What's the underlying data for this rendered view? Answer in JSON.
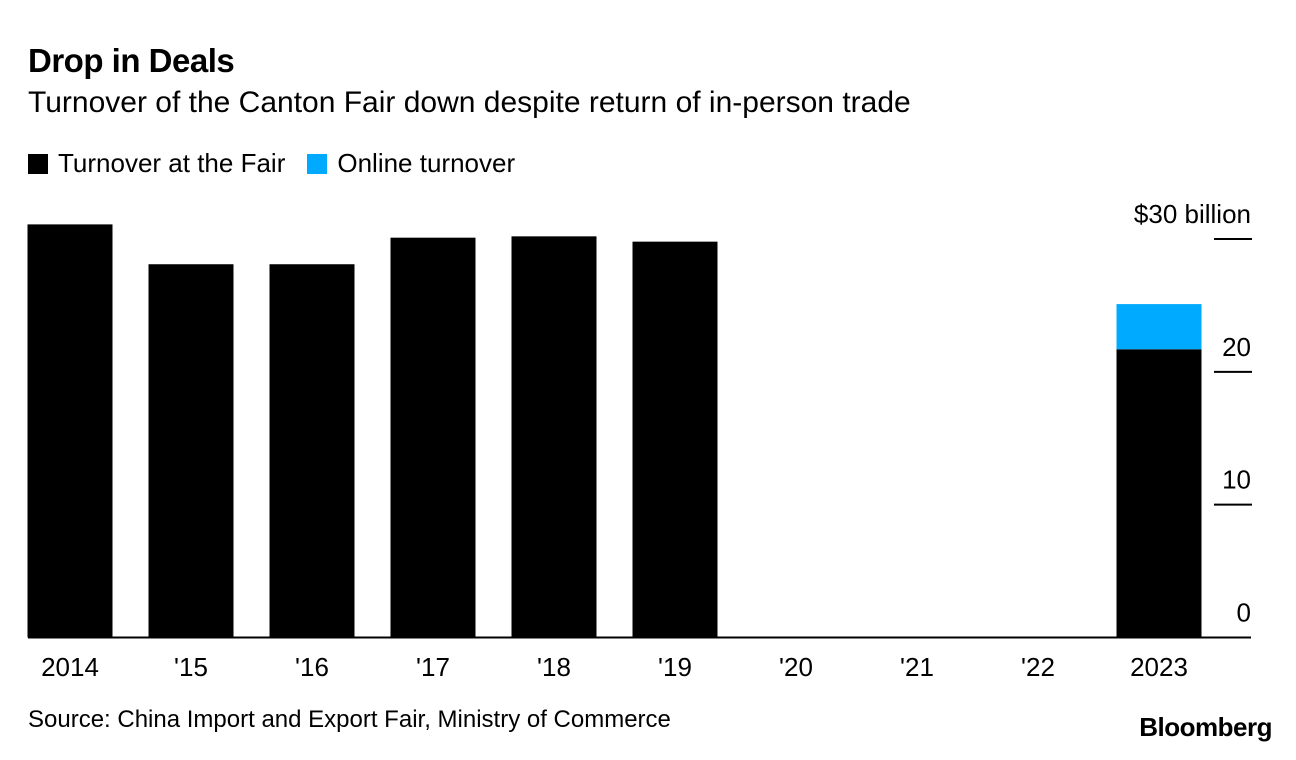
{
  "chart_data": {
    "type": "bar",
    "stacked": true,
    "title": "Drop in Deals",
    "subtitle": "Turnover of the Canton Fair down despite return of in-person trade",
    "categories": [
      "2014",
      "'15",
      "'16",
      "'17",
      "'18",
      "'19",
      "'20",
      "'21",
      "'22",
      "2023"
    ],
    "series": [
      {
        "name": "Turnover at the Fair",
        "color": "#000000",
        "values": [
          31.1,
          28.1,
          28.1,
          30.1,
          30.2,
          29.8,
          null,
          null,
          null,
          21.7
        ]
      },
      {
        "name": "Online turnover",
        "color": "#00aaff",
        "values": [
          null,
          null,
          null,
          null,
          null,
          null,
          null,
          null,
          null,
          3.4
        ]
      }
    ],
    "ylim": [
      0,
      30
    ],
    "yticks": [
      0,
      10,
      20,
      30
    ],
    "ytick_labels": [
      "0",
      "10",
      "20",
      "$30 billion"
    ],
    "yaxis_side": "right",
    "grid": false,
    "legend_position": "top-left",
    "source": "Source: China Import and Export Fair, Ministry of Commerce",
    "logo": "Bloomberg"
  }
}
